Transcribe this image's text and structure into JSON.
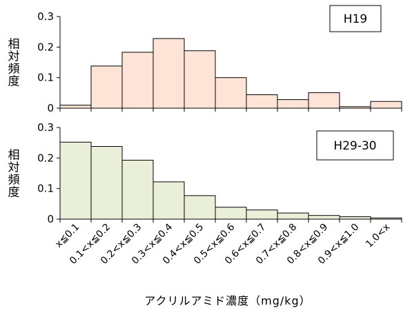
{
  "chart_data": [
    {
      "type": "bar",
      "legend": "H19",
      "ylabel": "相対頻度",
      "ylim": [
        0,
        0.3
      ],
      "yticks": [
        "0",
        "0.1",
        "0.2",
        "0.3"
      ],
      "bar_color": "#fde4d6",
      "categories": [
        "x≦0.1",
        "0.1<x≦0.2",
        "0.2<x≦0.3",
        "0.3<x≦0.4",
        "0.4<x≦0.5",
        "0.5<x≦0.6",
        "0.6<x≦0.7",
        "0.7<x≦0.8",
        "0.8<x≦0.9",
        "0.9<x≦1.0",
        "1.0<x"
      ],
      "values": [
        0.01,
        0.138,
        0.183,
        0.228,
        0.188,
        0.1,
        0.044,
        0.028,
        0.051,
        0.005,
        0.022
      ]
    },
    {
      "type": "bar",
      "legend": "H29-30",
      "ylabel": "相対頻度",
      "ylim": [
        0,
        0.3
      ],
      "yticks": [
        "0",
        "0.1",
        "0.2",
        "0.3"
      ],
      "bar_color": "#e9efd9",
      "categories": [
        "x≦0.1",
        "0.1<x≦0.2",
        "0.2<x≦0.3",
        "0.3<x≦0.4",
        "0.4<x≦0.5",
        "0.5<x≦0.6",
        "0.6<x≦0.7",
        "0.7<x≦0.8",
        "0.8<x≦0.9",
        "0.9<x≦1.0",
        "1.0<x"
      ],
      "values": [
        0.252,
        0.238,
        0.193,
        0.122,
        0.077,
        0.039,
        0.03,
        0.02,
        0.012,
        0.008,
        0.004
      ]
    }
  ],
  "category_labels": [
    "x≦0.1",
    "0.1<x≦0.2",
    "0.2<x≦0.3",
    "0.3<x≦0.4",
    "0.4<x≦0.5",
    "0.5<x≦0.6",
    "0.6<x≦0.7",
    "0.7<x≦0.8",
    "0.8<x≦0.9",
    "0.9<x≦1.0",
    "1.0<x"
  ],
  "xlabel": "アクリルアミド濃度（mg/kg）"
}
